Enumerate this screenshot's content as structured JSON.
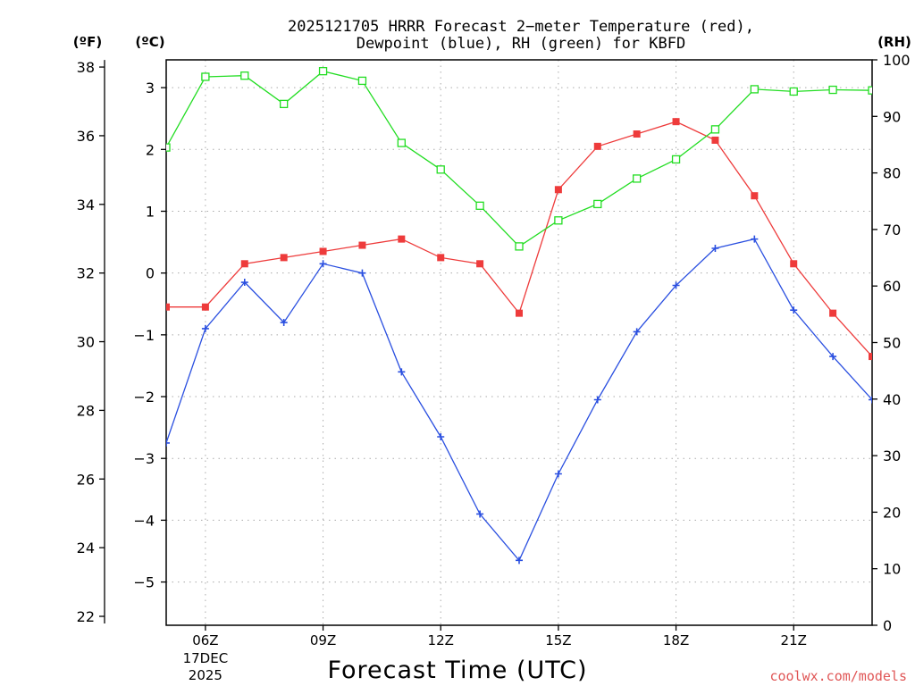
{
  "chart_data": {
    "type": "line",
    "title_line1": "2025121705 HRRR Forecast 2−meter Temperature (red),",
    "title_line2": "Dewpoint (blue), RH (green) for KBFD",
    "xlabel": "Forecast Time (UTC)",
    "watermark": "coolwx.com/models",
    "units": {
      "fahrenheit": "(ºF)",
      "celsius": "(ºC)",
      "rh": "(RH)"
    },
    "x_hours": [
      5,
      6,
      7,
      8,
      9,
      10,
      11,
      12,
      13,
      14,
      15,
      16,
      17,
      18,
      19,
      20,
      21,
      22,
      23
    ],
    "xlim": [
      5,
      23
    ],
    "x_ticks": [
      {
        "hour": 6,
        "label": "06Z",
        "sub1": "17DEC",
        "sub2": "2025"
      },
      {
        "hour": 9,
        "label": "09Z"
      },
      {
        "hour": 12,
        "label": "12Z"
      },
      {
        "hour": 15,
        "label": "15Z"
      },
      {
        "hour": 18,
        "label": "18Z"
      },
      {
        "hour": 21,
        "label": "21Z"
      }
    ],
    "ylim_c": [
      -5.7,
      3.45
    ],
    "y_ticks_c": [
      {
        "value": 3,
        "label": "3"
      },
      {
        "value": 2,
        "label": "2"
      },
      {
        "value": 1,
        "label": "1"
      },
      {
        "value": 0,
        "label": "0"
      },
      {
        "value": -1,
        "label": "−1"
      },
      {
        "value": -2,
        "label": "−2"
      },
      {
        "value": -3,
        "label": "−3"
      },
      {
        "value": -4,
        "label": "−4"
      },
      {
        "value": -5,
        "label": "−5"
      }
    ],
    "y_ticks_f": [
      {
        "value": 38,
        "label": "38"
      },
      {
        "value": 36,
        "label": "36"
      },
      {
        "value": 34,
        "label": "34"
      },
      {
        "value": 32,
        "label": "32"
      },
      {
        "value": 30,
        "label": "30"
      },
      {
        "value": 28,
        "label": "28"
      },
      {
        "value": 26,
        "label": "26"
      },
      {
        "value": 24,
        "label": "24"
      },
      {
        "value": 22,
        "label": "22"
      }
    ],
    "ylim_rh": [
      0,
      100
    ],
    "y_ticks_rh": [
      {
        "value": 100,
        "label": "100"
      },
      {
        "value": 90,
        "label": "90"
      },
      {
        "value": 80,
        "label": "80"
      },
      {
        "value": 70,
        "label": "70"
      },
      {
        "value": 60,
        "label": "60"
      },
      {
        "value": 50,
        "label": "50"
      },
      {
        "value": 40,
        "label": "40"
      },
      {
        "value": 30,
        "label": "30"
      },
      {
        "value": 20,
        "label": "20"
      },
      {
        "value": 10,
        "label": "10"
      },
      {
        "value": 0,
        "label": "0"
      }
    ],
    "series": [
      {
        "name": "Temperature",
        "units": "C",
        "axis": "celsius",
        "color": "#ee3b3b",
        "marker": "filled-square",
        "values": [
          -0.55,
          -0.55,
          0.15,
          0.25,
          0.35,
          0.45,
          0.55,
          0.25,
          0.15,
          -0.65,
          1.35,
          2.05,
          2.25,
          2.45,
          2.15,
          1.25,
          0.15,
          -0.65,
          -1.35
        ]
      },
      {
        "name": "Dewpoint",
        "units": "C",
        "axis": "celsius",
        "color": "#2a4fe0",
        "marker": "plus",
        "values": [
          -2.75,
          -0.9,
          -0.15,
          -0.8,
          0.15,
          0,
          -1.6,
          -2.65,
          -3.9,
          -4.65,
          -3.25,
          -2.05,
          -0.95,
          -0.2,
          0.4,
          0.55,
          -0.6,
          -1.35,
          -2.05
        ]
      },
      {
        "name": "RH",
        "units": "%",
        "axis": "rh",
        "color": "#22dd22",
        "marker": "open-square",
        "values": [
          84.5,
          97,
          97.2,
          92.2,
          98,
          96.3,
          85.3,
          80.6,
          74.2,
          67,
          71.6,
          74.5,
          79,
          82.4,
          87.7,
          94.8,
          94.4,
          94.7,
          94.6
        ]
      }
    ]
  }
}
